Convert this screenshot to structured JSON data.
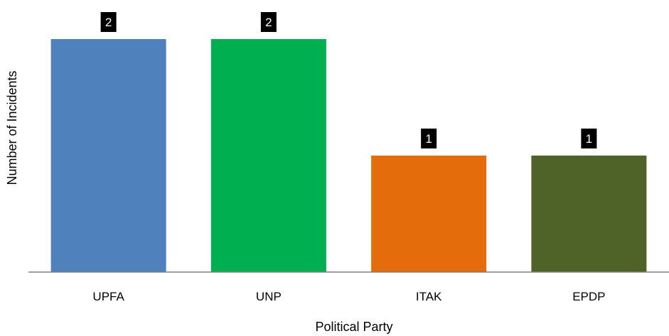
{
  "chart_data": {
    "type": "bar",
    "categories": [
      "UPFA",
      "UNP",
      "ITAK",
      "EPDP"
    ],
    "values": [
      2,
      2,
      1,
      1
    ],
    "colors": [
      "#4f81bd",
      "#00b050",
      "#e46c0a",
      "#4f6228"
    ],
    "xlabel": "Political Party",
    "ylabel": "Number of Incidents",
    "ylim": [
      0,
      2
    ],
    "grid": false,
    "legend": "none",
    "data_labels": true
  }
}
